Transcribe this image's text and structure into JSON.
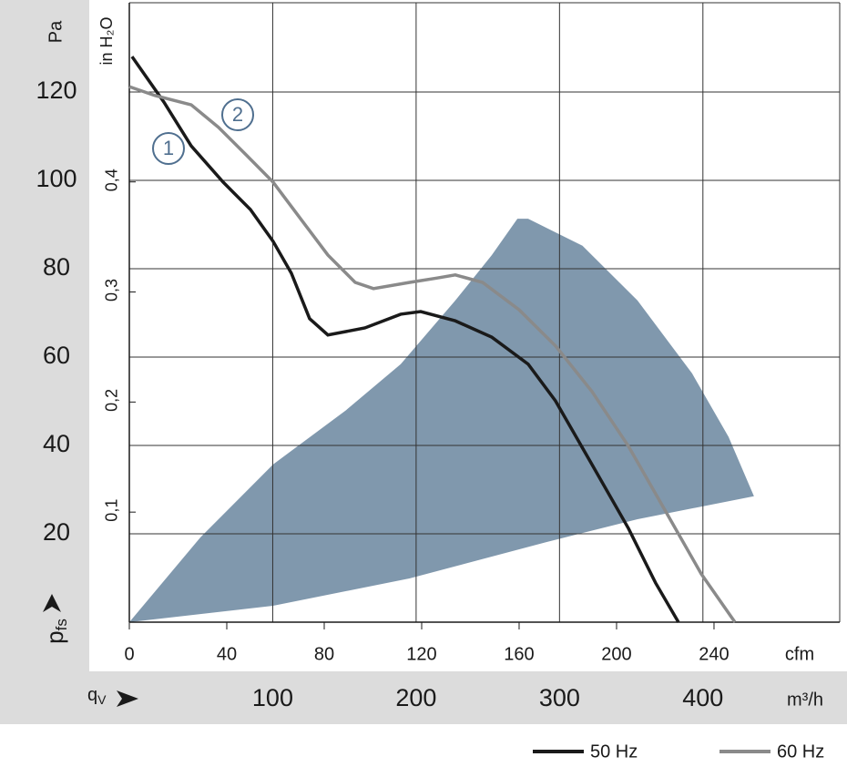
{
  "chart_data": {
    "type": "line",
    "x_label": "cfm",
    "x2_label": "m³/h",
    "y_label": {
      "main": "p",
      "sub": "fs"
    },
    "x2_symbol": {
      "main": "q",
      "sub": "V"
    },
    "y_unit": "Pa",
    "y2_label": "in H₂O",
    "xlim": [
      0,
      291.6
    ],
    "xticks": [
      0,
      40,
      80,
      120,
      160,
      200,
      240
    ],
    "x2lim": [
      0,
      495.4
    ],
    "x2ticks": [
      100,
      200,
      300,
      400
    ],
    "ylim": [
      0,
      140.2
    ],
    "yticks": [
      20,
      40,
      60,
      80,
      100,
      120
    ],
    "y2lim": [
      0,
      0.5628
    ],
    "y2ticks": [
      {
        "value": 0.1,
        "label": "0,1"
      },
      {
        "value": 0.2,
        "label": "0,2"
      },
      {
        "value": 0.3,
        "label": "0,3"
      },
      {
        "value": 0.4,
        "label": "0,4"
      }
    ],
    "grid": true,
    "series": [
      {
        "name": "50 Hz",
        "color": "#1a1a1a",
        "marker_label": "1",
        "x": [
          1.1,
          14.2,
          25.4,
          38.5,
          49.7,
          59,
          66.5,
          74,
          81.5,
          96.7,
          111.4,
          119.6,
          133.8,
          148.8,
          163.7,
          174.9,
          189.9,
          204.9,
          216,
          225.4
        ],
        "values": [
          128,
          117.7,
          107.8,
          99.6,
          93.4,
          86.2,
          79,
          68.7,
          65,
          66.6,
          69.7,
          70.3,
          68.2,
          64.5,
          58.4,
          50.1,
          35.7,
          21.2,
          8.9,
          0
        ]
      },
      {
        "name": "60 Hz",
        "color": "#8a8a8a",
        "marker_label": "2",
        "x": [
          0,
          10.5,
          25.4,
          36.6,
          47.9,
          59,
          70.3,
          81.5,
          92.7,
          100.2,
          115.1,
          126.4,
          133.8,
          145,
          160,
          175,
          189.9,
          204.9,
          219.8,
          234.8,
          248.6
        ],
        "values": [
          121.2,
          119.2,
          117.1,
          112,
          105.8,
          99.6,
          91.3,
          83.1,
          76.9,
          75.5,
          76.9,
          77.9,
          78.6,
          76.9,
          70.7,
          62.5,
          52.2,
          39.8,
          25.4,
          10.9,
          0
        ]
      }
    ],
    "shaded_area": {
      "color": "#8098ad",
      "x": [
        0,
        59,
        115,
        171,
        208.6,
        256.4,
        246,
        231,
        208.6,
        186,
        163.7,
        159.3,
        148.8,
        133.8,
        111.4,
        89,
        59,
        29.2
      ],
      "values": [
        0,
        3.7,
        9.9,
        18.1,
        23.3,
        28.5,
        41.9,
        56.3,
        72.8,
        85.2,
        91.3,
        91.3,
        83.1,
        72.8,
        58.4,
        48,
        35.7,
        19.2
      ]
    }
  }
}
